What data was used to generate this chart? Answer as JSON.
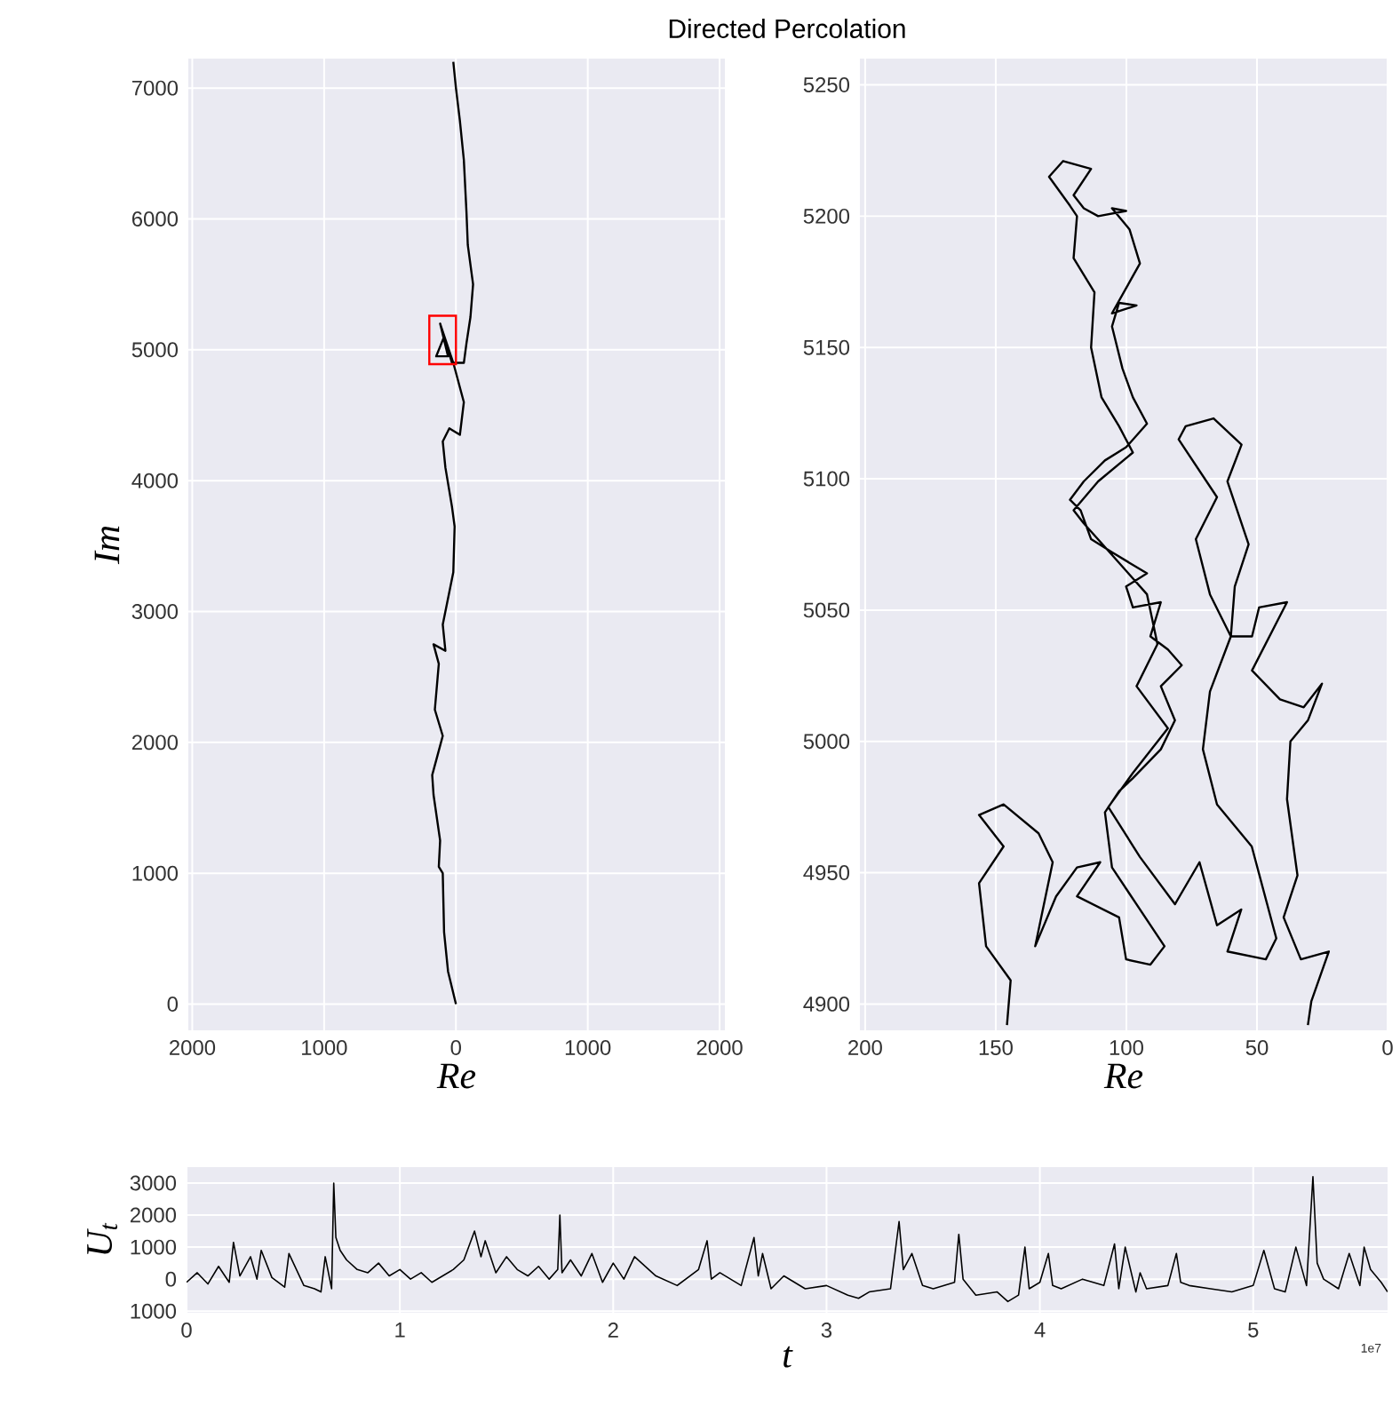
{
  "chart_data": [
    {
      "type": "line",
      "title": "Directed Percolation",
      "xlabel": "Re",
      "ylabel": "Im",
      "grid": true,
      "xlim": [
        2030,
        -2040
      ],
      "ylim": [
        -200,
        7225
      ],
      "xticks": [
        2000,
        1000,
        0,
        {
          "value": -1000,
          "label": "1000"
        },
        {
          "value": -2000,
          "label": "2000"
        }
      ],
      "yticks": [
        0,
        1000,
        2000,
        3000,
        4000,
        5000,
        6000,
        7000
      ],
      "series": [
        {
          "color": "#000000",
          "x": [
            0,
            60,
            90,
            100,
            130,
            120,
            170,
            180,
            140,
            100,
            160,
            130,
            170,
            80,
            100,
            20,
            10,
            30,
            80,
            100,
            50,
            -30,
            -60,
            20,
            120,
            60,
            150,
            90,
            30,
            -60,
            -80,
            -110,
            -130,
            -90,
            -80,
            -60,
            -30,
            0,
            20
          ],
          "values": [
            0,
            250,
            550,
            1000,
            1050,
            1250,
            1600,
            1750,
            1900,
            2050,
            2250,
            2600,
            2750,
            2700,
            2900,
            3300,
            3650,
            3800,
            4100,
            4300,
            4400,
            4350,
            4600,
            4900,
            5200,
            4950,
            4950,
            5100,
            4900,
            4900,
            5050,
            5250,
            5500,
            5800,
            6050,
            6450,
            6750,
            7000,
            7200
          ]
        }
      ]
    },
    {
      "type": "line",
      "xlabel": "Re",
      "grid": true,
      "xlim": [
        202,
        0
      ],
      "ylim": [
        4890,
        5260
      ],
      "xticks": [
        200,
        150,
        100,
        50,
        0
      ],
      "yticks": [
        4900,
        4950,
        5000,
        5050,
        5100,
        5150,
        5200,
        5250
      ],
      "series": [
        {
          "color": "#000000",
          "x": [
            145.7,
            144.3,
            153.7,
            156.4,
            147,
            156.4,
            147,
            133.6,
            128.2,
            134.9,
            126.9,
            118.9,
            110,
            118.9,
            102.8,
            100.1,
            90.8,
            85.4,
            105.5,
            108.2,
            102.8,
            97.5,
            86.8,
            81.4,
            86.8,
            78.8,
            84.1,
            90.8,
            86.8,
            97.5,
            100.1,
            92.1,
            105.5,
            113.5,
            117.5,
            121.6,
            116.3,
            108.2,
            100.1,
            92.1,
            97.5,
            101.5,
            105.5,
            102.8,
            96.1,
            105.5,
            94.8,
            98.8,
            105.5,
            100.1,
            110.8,
            116.3,
            120.2,
            113.5,
            124.2,
            129.6,
            121.6,
            118.9,
            120.2,
            112.2,
            113.5,
            109.5,
            102.8,
            97.5,
            110.8,
            120.2,
            116.3,
            105.5,
            92.1,
            88.1,
            96.1,
            84.1,
            97.5,
            106.9,
            94.8,
            81.4,
            72,
            65.3,
            56,
            61.3,
            46.6,
            42.6,
            52,
            65.3,
            70.7,
            68,
            60,
            68,
            73.4,
            65.3,
            80,
            77.3,
            66.6,
            55.9,
            61.3,
            53.2,
            58.5,
            60,
            51.9,
            49.2,
            38.5,
            51.9,
            41.2,
            32.1,
            25.1,
            30.5,
            37.2,
            38.5,
            34.5,
            39.8,
            33.2,
            22.5,
            29.2,
            30.5
          ],
          "values": [
            4892,
            4909,
            4922,
            4946,
            4960,
            4972,
            4976,
            4965,
            4954,
            4922,
            4941,
            4952,
            4954,
            4941,
            4933,
            4917,
            4915,
            4922,
            4952,
            4973,
            4981,
            4986,
            4997,
            5008,
            5021,
            5029,
            5035,
            5040,
            5053,
            5051,
            5059,
            5064,
            5072,
            5077,
            5088,
            5092,
            5099,
            5107,
            5112,
            5121,
            5131,
            5142,
            5158,
            5167,
            5166,
            5163,
            5182,
            5195,
            5203,
            5202,
            5200,
            5203,
            5208,
            5218,
            5221,
            5215,
            5204,
            5200,
            5184,
            5171,
            5150,
            5131,
            5120,
            5110,
            5099,
            5088,
            5083,
            5071,
            5056,
            5037,
            5021,
            5005,
            4988,
            4975,
            4956,
            4938,
            4954,
            4930,
            4936,
            4920,
            4917,
            4925,
            4960,
            4976,
            4997,
            5019,
            5040,
            5056,
            5077,
            5093,
            5115,
            5120,
            5123,
            5113,
            5099,
            5075,
            5059,
            5040,
            5040,
            5051,
            5053,
            5027,
            5016,
            5013,
            5022,
            5008,
            5000,
            4978,
            4949,
            4933,
            4917,
            4920,
            4901,
            4892
          ]
        }
      ]
    },
    {
      "type": "line",
      "xlabel": "t",
      "ylabel": "U$_{t}$",
      "grid": true,
      "annotations": [
        "1e7"
      ],
      "xlim": [
        0,
        5.63
      ],
      "ylim": [
        -1050,
        3500
      ],
      "xticks": [
        0,
        1,
        2,
        3,
        4,
        5
      ],
      "yticks": [
        {
          "value": -1000,
          "label": "1000"
        },
        0,
        1000,
        2000,
        3000
      ],
      "series": [
        {
          "color": "#000000",
          "x": [
            0,
            0.05,
            0.1,
            0.15,
            0.2,
            0.22,
            0.25,
            0.3,
            0.33,
            0.35,
            0.4,
            0.46,
            0.48,
            0.55,
            0.6,
            0.63,
            0.65,
            0.68,
            0.69,
            0.7,
            0.72,
            0.75,
            0.8,
            0.85,
            0.9,
            0.95,
            1.0,
            1.05,
            1.1,
            1.15,
            1.2,
            1.25,
            1.3,
            1.35,
            1.38,
            1.4,
            1.45,
            1.5,
            1.55,
            1.6,
            1.65,
            1.7,
            1.74,
            1.75,
            1.76,
            1.8,
            1.85,
            1.9,
            1.95,
            2.0,
            2.05,
            2.1,
            2.2,
            2.3,
            2.4,
            2.44,
            2.46,
            2.5,
            2.6,
            2.66,
            2.68,
            2.7,
            2.74,
            2.8,
            2.9,
            3.0,
            3.1,
            3.15,
            3.2,
            3.3,
            3.34,
            3.36,
            3.4,
            3.45,
            3.5,
            3.6,
            3.62,
            3.64,
            3.7,
            3.8,
            3.85,
            3.9,
            3.93,
            3.95,
            4.0,
            4.04,
            4.06,
            4.1,
            4.2,
            4.3,
            4.35,
            4.37,
            4.4,
            4.45,
            4.47,
            4.5,
            4.6,
            4.64,
            4.66,
            4.7,
            4.8,
            4.9,
            5.0,
            5.05,
            5.1,
            5.15,
            5.2,
            5.25,
            5.28,
            5.3,
            5.33,
            5.4,
            5.45,
            5.5,
            5.52,
            5.55,
            5.6,
            5.63
          ],
          "values": [
            -100,
            200,
            -150,
            400,
            -100,
            1150,
            100,
            700,
            0,
            900,
            50,
            -250,
            800,
            -200,
            -300,
            -400,
            700,
            -300,
            3000,
            1300,
            900,
            600,
            300,
            200,
            500,
            100,
            300,
            0,
            200,
            -100,
            100,
            300,
            600,
            1500,
            700,
            1200,
            200,
            700,
            300,
            100,
            400,
            0,
            300,
            2000,
            200,
            600,
            100,
            800,
            -100,
            500,
            0,
            700,
            100,
            -200,
            300,
            1200,
            0,
            200,
            -200,
            1300,
            100,
            800,
            -300,
            100,
            -300,
            -200,
            -500,
            -600,
            -400,
            -300,
            1800,
            300,
            800,
            -200,
            -300,
            -100,
            1400,
            0,
            -500,
            -400,
            -700,
            -500,
            1000,
            -300,
            -100,
            800,
            -200,
            -300,
            0,
            -200,
            1100,
            -300,
            1000,
            -400,
            200,
            -300,
            -200,
            800,
            -100,
            -200,
            -300,
            -400,
            -200,
            900,
            -300,
            -400,
            1000,
            -200,
            3200,
            500,
            0,
            -300,
            800,
            -200,
            1000,
            300,
            -100,
            -400
          ]
        }
      ]
    }
  ]
}
